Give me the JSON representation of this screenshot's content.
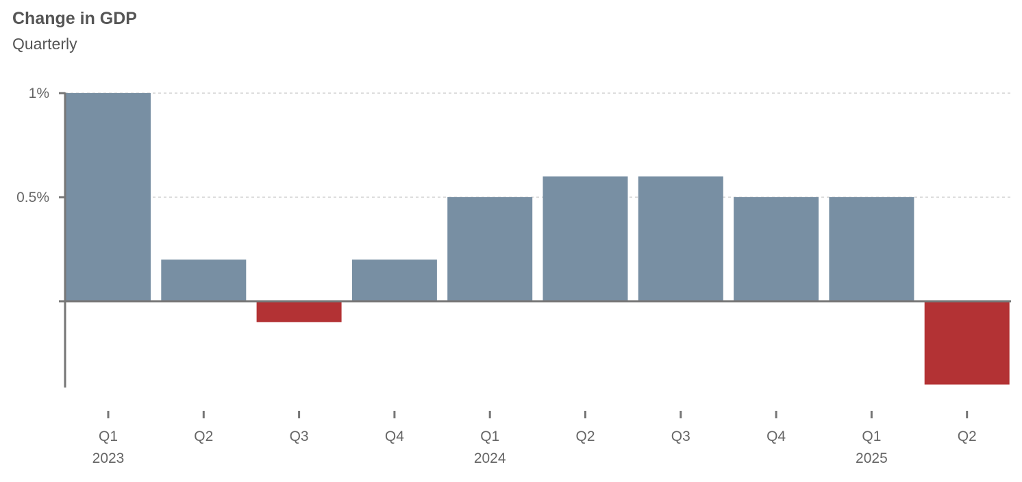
{
  "chart_data": {
    "type": "bar",
    "title": "Change in GDP",
    "subtitle": "Quarterly",
    "categories": [
      "Q1",
      "Q2",
      "Q3",
      "Q4",
      "Q1",
      "Q2",
      "Q3",
      "Q4",
      "Q1",
      "Q2"
    ],
    "year_labels": {
      "0": "2023",
      "4": "2024",
      "8": "2025"
    },
    "values": [
      1.0,
      0.2,
      -0.1,
      0.2,
      0.5,
      0.6,
      0.6,
      0.5,
      0.5,
      -0.4
    ],
    "yticks": [
      {
        "value": 1,
        "label": "1%"
      },
      {
        "value": 0.5,
        "label": "0.5%"
      },
      {
        "value": 0,
        "label": ""
      }
    ],
    "ylim": [
      -0.4,
      1.0
    ],
    "xlabel": "",
    "ylabel": "",
    "grid": true,
    "colors": {
      "positive": "#788fa3",
      "negative": "#b33234",
      "axis": "#767676",
      "grid": "#bbbbbb"
    }
  }
}
